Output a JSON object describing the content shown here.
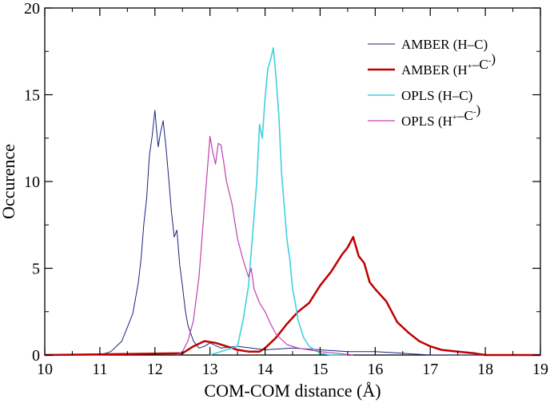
{
  "chart_data": {
    "type": "line",
    "xlabel": "COM-COM distance (Å)",
    "ylabel": "Occurence",
    "xlim": [
      10,
      19
    ],
    "ylim": [
      0,
      20
    ],
    "xticks": [
      10,
      11,
      12,
      13,
      14,
      15,
      16,
      17,
      18,
      19
    ],
    "yticks": [
      0,
      5,
      10,
      15,
      20
    ],
    "legend_position": "top-right",
    "grid": false,
    "series": [
      {
        "name": "AMBER (H–C)",
        "legend": {
          "pre": "AMBER (H",
          "sup1": "",
          "mid": "–C",
          "sup2": "",
          "post": ")"
        },
        "color": "#1a237e",
        "width": 1,
        "x": [
          11.0,
          11.2,
          11.3,
          11.4,
          11.5,
          11.6,
          11.7,
          11.75,
          11.8,
          11.85,
          11.9,
          11.95,
          12.0,
          12.03,
          12.06,
          12.1,
          12.15,
          12.2,
          12.25,
          12.3,
          12.35,
          12.4,
          12.45,
          12.5,
          12.55,
          12.6,
          12.7,
          12.8,
          12.9,
          13.0,
          13.2,
          13.5,
          14.0,
          14.5,
          15.0,
          15.5,
          16.0,
          16.5,
          17.0,
          19.0
        ],
        "y": [
          0.0,
          0.2,
          0.5,
          0.8,
          1.6,
          2.4,
          4.2,
          5.6,
          7.6,
          9.0,
          11.5,
          12.6,
          14.1,
          13.0,
          12.0,
          12.8,
          13.5,
          12.0,
          10.2,
          8.3,
          6.8,
          7.2,
          5.2,
          4.0,
          2.6,
          1.7,
          0.8,
          0.4,
          0.5,
          0.7,
          0.4,
          0.5,
          0.3,
          0.4,
          0.3,
          0.2,
          0.2,
          0.1,
          0.0,
          0.0
        ]
      },
      {
        "name": "AMBER (H+–C-)",
        "legend": {
          "pre": "AMBER (H",
          "sup1": "+",
          "mid": "–C",
          "sup2": "-",
          "post": ")"
        },
        "color": "#c00000",
        "width": 2.5,
        "x": [
          10.0,
          12.5,
          12.7,
          12.9,
          13.1,
          13.3,
          13.5,
          13.7,
          13.9,
          14.0,
          14.2,
          14.4,
          14.6,
          14.8,
          15.0,
          15.2,
          15.4,
          15.5,
          15.6,
          15.7,
          15.8,
          15.9,
          16.0,
          16.2,
          16.4,
          16.6,
          16.8,
          17.0,
          17.2,
          17.5,
          17.8,
          18.0,
          19.0
        ],
        "y": [
          0.0,
          0.1,
          0.5,
          0.8,
          0.7,
          0.5,
          0.3,
          0.2,
          0.2,
          0.4,
          1.0,
          1.8,
          2.5,
          3.0,
          4.0,
          4.8,
          5.8,
          6.2,
          6.8,
          5.7,
          5.3,
          4.2,
          3.8,
          3.1,
          1.9,
          1.3,
          0.8,
          0.5,
          0.3,
          0.2,
          0.1,
          0.0,
          0.0
        ]
      },
      {
        "name": "OPLS (H–C)",
        "legend": {
          "pre": "OPLS (H",
          "sup1": "",
          "mid": "–C",
          "sup2": "",
          "post": ")"
        },
        "color": "#40d0e0",
        "width": 1.6,
        "x": [
          13.0,
          13.5,
          13.6,
          13.7,
          13.8,
          13.85,
          13.9,
          13.95,
          14.0,
          14.05,
          14.1,
          14.15,
          14.2,
          14.25,
          14.3,
          14.35,
          14.4,
          14.45,
          14.5,
          14.55,
          14.6,
          14.7,
          14.8,
          14.9,
          15.0,
          15.2,
          15.5
        ],
        "y": [
          0.0,
          0.5,
          2.0,
          4.0,
          8.0,
          10.0,
          13.3,
          12.5,
          14.8,
          16.5,
          17.0,
          17.7,
          16.0,
          13.8,
          10.5,
          8.5,
          6.6,
          5.5,
          3.8,
          3.0,
          2.0,
          1.0,
          0.5,
          0.3,
          0.1,
          0.0,
          0.0
        ]
      },
      {
        "name": "OPLS (H+–C-)",
        "legend": {
          "pre": "OPLS (H",
          "sup1": "+",
          "mid": "–C",
          "sup2": "-",
          "post": ")"
        },
        "color": "#c040b0",
        "width": 1.2,
        "x": [
          12.4,
          12.5,
          12.6,
          12.7,
          12.8,
          12.9,
          13.0,
          13.05,
          13.1,
          13.15,
          13.2,
          13.25,
          13.3,
          13.4,
          13.5,
          13.6,
          13.7,
          13.75,
          13.8,
          13.9,
          14.0,
          14.1,
          14.2,
          14.4,
          14.6,
          14.8,
          15.0,
          15.3,
          15.6
        ],
        "y": [
          0.0,
          0.2,
          0.8,
          2.0,
          4.5,
          8.6,
          12.6,
          11.7,
          11.0,
          12.2,
          12.1,
          11.1,
          10.0,
          8.7,
          6.7,
          5.5,
          4.5,
          5.0,
          3.8,
          3.0,
          2.5,
          1.8,
          1.2,
          0.6,
          0.4,
          0.3,
          0.2,
          0.1,
          0.0
        ]
      }
    ]
  }
}
